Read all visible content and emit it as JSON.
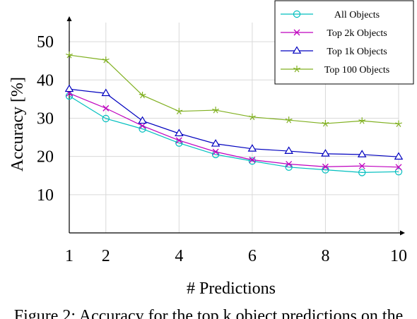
{
  "chart_data": {
    "type": "line",
    "title": "",
    "xlabel": "# Predictions",
    "ylabel": "Accuracy [%]",
    "xlim": [
      1,
      10
    ],
    "ylim": [
      0,
      55
    ],
    "x_ticks": [
      1,
      2,
      4,
      6,
      8,
      10
    ],
    "y_ticks": [
      10,
      20,
      30,
      40,
      50
    ],
    "grid": true,
    "legend_position": "top-right",
    "x": [
      1,
      2,
      3,
      4,
      5,
      6,
      7,
      8,
      9,
      10
    ],
    "series": [
      {
        "name": "All Objects",
        "marker": "circle",
        "color": "#00bfbf",
        "values": [
          35.8,
          29.9,
          27.2,
          23.5,
          20.5,
          18.8,
          17.2,
          16.5,
          15.8,
          16.0
        ]
      },
      {
        "name": "Top 2k Objects",
        "marker": "cross",
        "color": "#bf00bf",
        "values": [
          36.5,
          32.6,
          28.0,
          24.2,
          21.2,
          19.1,
          18.0,
          17.3,
          17.5,
          17.2
        ]
      },
      {
        "name": "Top 1k Objects",
        "marker": "triangle",
        "color": "#0000bf",
        "values": [
          37.6,
          36.5,
          29.3,
          26.0,
          23.3,
          22.0,
          21.4,
          20.7,
          20.5,
          19.9
        ]
      },
      {
        "name": "Top 100 Objects",
        "marker": "star",
        "color": "#80b020",
        "values": [
          46.5,
          45.2,
          36.0,
          31.8,
          32.1,
          30.3,
          29.5,
          28.6,
          29.3,
          28.5
        ]
      }
    ]
  },
  "caption": "Figure 2: Accuracy for the top k object predictions on the"
}
